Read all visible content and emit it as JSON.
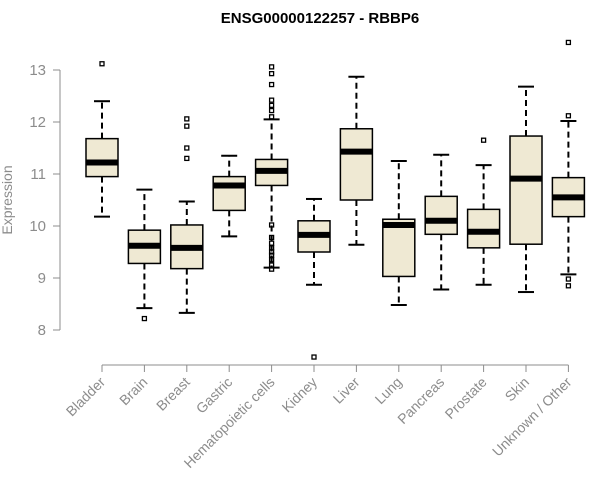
{
  "chart_data": {
    "type": "boxplot",
    "title": "ENSG00000122257 - RBBP6",
    "xlabel": "",
    "ylabel": "Expression",
    "ylim": [
      7.5,
      13.6
    ],
    "yticks": [
      8,
      9,
      10,
      11,
      12,
      13
    ],
    "grid": false,
    "box_fill": "#efe9d3",
    "box_stroke": "#000000",
    "axis_color": "#8c8c8c",
    "categories": [
      "Bladder",
      "Brain",
      "Breast",
      "Gastric",
      "Hematopoietic cells",
      "Kidney",
      "Liver",
      "Lung",
      "Pancreas",
      "Prostate",
      "Skin",
      "Unknown / Other"
    ],
    "series": [
      {
        "name": "Bladder",
        "whisker_low": 10.18,
        "q1": 10.95,
        "median": 11.22,
        "q3": 11.68,
        "whisker_high": 12.4,
        "outliers": [
          13.12
        ]
      },
      {
        "name": "Brain",
        "whisker_low": 8.42,
        "q1": 9.28,
        "median": 9.62,
        "q3": 9.92,
        "whisker_high": 10.7,
        "outliers": [
          8.22
        ]
      },
      {
        "name": "Breast",
        "whisker_low": 8.33,
        "q1": 9.18,
        "median": 9.58,
        "q3": 10.02,
        "whisker_high": 10.47,
        "outliers": [
          12.06,
          11.92,
          11.5,
          11.3
        ]
      },
      {
        "name": "Gastric",
        "whisker_low": 9.8,
        "q1": 10.3,
        "median": 10.78,
        "q3": 10.95,
        "whisker_high": 11.35,
        "outliers": []
      },
      {
        "name": "Hematopoietic cells",
        "whisker_low": 9.2,
        "q1": 10.78,
        "median": 11.06,
        "q3": 11.28,
        "whisker_high": 12.05,
        "outliers": [
          13.06,
          12.93,
          12.72,
          12.42,
          12.32,
          12.22,
          12.1,
          10.02,
          9.78,
          9.67,
          9.58,
          9.5,
          9.44,
          9.35,
          9.25,
          9.17
        ]
      },
      {
        "name": "Kidney",
        "whisker_low": 8.87,
        "q1": 9.5,
        "median": 9.83,
        "q3": 10.1,
        "whisker_high": 10.52,
        "outliers": [
          7.48
        ]
      },
      {
        "name": "Liver",
        "whisker_low": 9.64,
        "q1": 10.5,
        "median": 11.43,
        "q3": 11.87,
        "whisker_high": 12.87,
        "outliers": []
      },
      {
        "name": "Lung",
        "whisker_low": 8.48,
        "q1": 9.03,
        "median": 10.02,
        "q3": 10.13,
        "whisker_high": 11.25,
        "outliers": []
      },
      {
        "name": "Pancreas",
        "whisker_low": 8.78,
        "q1": 9.84,
        "median": 10.1,
        "q3": 10.57,
        "whisker_high": 11.37,
        "outliers": []
      },
      {
        "name": "Prostate",
        "whisker_low": 8.87,
        "q1": 9.58,
        "median": 9.89,
        "q3": 10.32,
        "whisker_high": 11.17,
        "outliers": [
          11.65
        ]
      },
      {
        "name": "Skin",
        "whisker_low": 8.73,
        "q1": 9.65,
        "median": 10.91,
        "q3": 11.73,
        "whisker_high": 12.68,
        "outliers": []
      },
      {
        "name": "Unknown / Other",
        "whisker_low": 9.07,
        "q1": 10.18,
        "median": 10.55,
        "q3": 10.93,
        "whisker_high": 12.02,
        "outliers": [
          13.53,
          12.12,
          8.98,
          8.85
        ]
      }
    ]
  }
}
